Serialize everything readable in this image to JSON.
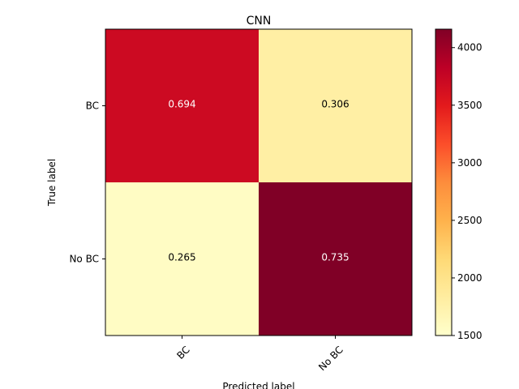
{
  "chart_data": {
    "type": "heatmap",
    "title": "CNN",
    "xlabel": "Predicted label",
    "ylabel": "True label",
    "x_categories": [
      "BC",
      "No BC"
    ],
    "y_categories": [
      "BC",
      "No BC"
    ],
    "cell_labels": [
      [
        "0.694",
        "0.306"
      ],
      [
        "0.265",
        "0.735"
      ]
    ],
    "color_values": [
      [
        3700,
        1800
      ],
      [
        1560,
        4160
      ]
    ],
    "colorbar": {
      "range": [
        1500,
        4160
      ],
      "ticks": [
        1500,
        2000,
        2500,
        3000,
        3500,
        4000
      ],
      "tick_labels": [
        "1500",
        "2000",
        "2500",
        "3000",
        "3500",
        "4000"
      ]
    },
    "colormap": "YlOrRd",
    "colorbar_placement": "right",
    "x_tick_rotation": 45
  }
}
